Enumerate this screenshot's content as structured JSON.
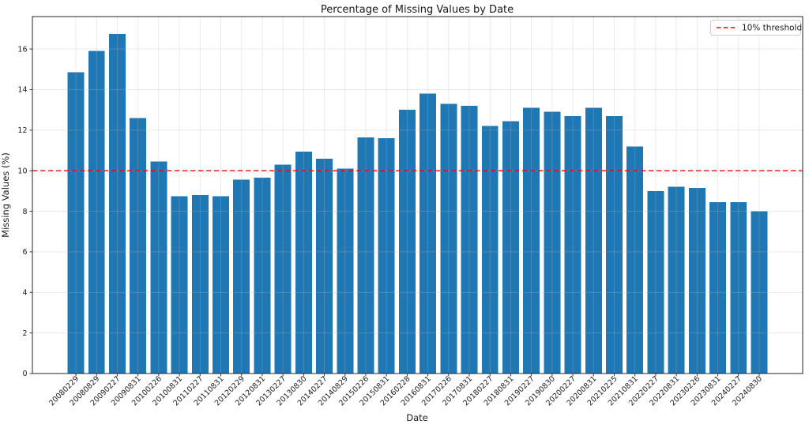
{
  "chart_data": {
    "type": "bar",
    "title": "Percentage of Missing Values by Date",
    "xlabel": "Date",
    "ylabel": "Missing Values (%)",
    "categories": [
      "20080229",
      "20080829",
      "20090227",
      "20090831",
      "20100226",
      "20100831",
      "20110227",
      "20110831",
      "20120229",
      "20120831",
      "20130227",
      "20130830",
      "20140227",
      "20140829",
      "20150226",
      "20150831",
      "20160228",
      "20160831",
      "20170226",
      "20170831",
      "20180227",
      "20180831",
      "20190227",
      "20190830",
      "20200227",
      "20200831",
      "20210225",
      "20210831",
      "20220227",
      "20220831",
      "20230226",
      "20230831",
      "20240227",
      "20240830"
    ],
    "values": [
      14.85,
      15.9,
      16.75,
      12.6,
      10.45,
      8.75,
      8.8,
      8.75,
      9.55,
      9.65,
      10.3,
      10.95,
      10.6,
      10.1,
      11.65,
      11.6,
      13.0,
      13.8,
      13.3,
      13.2,
      12.2,
      12.45,
      13.1,
      12.9,
      12.7,
      13.1,
      12.7,
      11.2,
      9.0,
      9.2,
      9.15,
      8.45,
      8.45,
      8.0
    ],
    "ylim": [
      0,
      17.6
    ],
    "yticks": [
      0,
      2,
      4,
      6,
      8,
      10,
      12,
      14,
      16
    ],
    "grid": true,
    "legend_position": "upper right",
    "bar_color": "#1f77b4",
    "threshold": {
      "value": 10,
      "label": "10% threshold",
      "color": "#ff0000",
      "style": "dashed"
    }
  }
}
